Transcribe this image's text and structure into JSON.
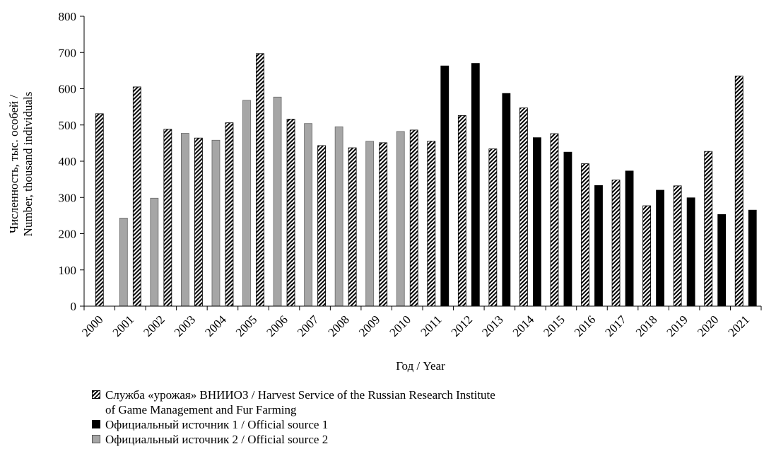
{
  "chart_data": {
    "type": "bar",
    "categories": [
      "2000",
      "2001",
      "2002",
      "2003",
      "2004",
      "2005",
      "2006",
      "2007",
      "2008",
      "2009",
      "2010",
      "2011",
      "2012",
      "2013",
      "2014",
      "2015",
      "2016",
      "2017",
      "2018",
      "2019",
      "2020",
      "2021"
    ],
    "series": [
      {
        "name": "Официальный источник 2 / Official source 2",
        "style": "gray",
        "color": "#a6a6a6",
        "values": [
          null,
          243,
          298,
          477,
          458,
          568,
          577,
          504,
          495,
          455,
          482,
          null,
          null,
          null,
          null,
          null,
          null,
          null,
          null,
          null,
          null,
          null
        ]
      },
      {
        "name": "Служба «урожая» ВНИИОЗ / Harvest Service of the Russian Research Institute of Game Management and Fur Farming",
        "style": "hatch",
        "color": "#000000",
        "values": [
          531,
          605,
          488,
          464,
          506,
          697,
          516,
          443,
          437,
          451,
          486,
          455,
          526,
          434,
          547,
          476,
          393,
          348,
          277,
          332,
          427,
          635
        ]
      },
      {
        "name": "Официальный источник 1 / Official source 1",
        "style": "black",
        "color": "#000000",
        "values": [
          null,
          null,
          null,
          null,
          null,
          null,
          null,
          null,
          null,
          null,
          null,
          663,
          670,
          587,
          465,
          425,
          333,
          373,
          320,
          299,
          253,
          265
        ]
      }
    ],
    "ylim": [
      0,
      800
    ],
    "yticks": [
      0,
      100,
      200,
      300,
      400,
      500,
      600,
      700,
      800
    ],
    "ylabel_line1": "Численность, тыс. особей /",
    "ylabel_line2": "Number, thousand individuals",
    "xlabel": "Год / Year",
    "grid": false,
    "legend_position": "bottom"
  },
  "legend": {
    "item1_line1": "Служба «урожая» ВНИИОЗ / Harvest Service of the Russian Research Institute",
    "item1_line2": "of Game Management and Fur Farming",
    "item2": "Официальный источник 1 / Official source 1",
    "item3": "Официальный источник 2 / Official source 2"
  }
}
